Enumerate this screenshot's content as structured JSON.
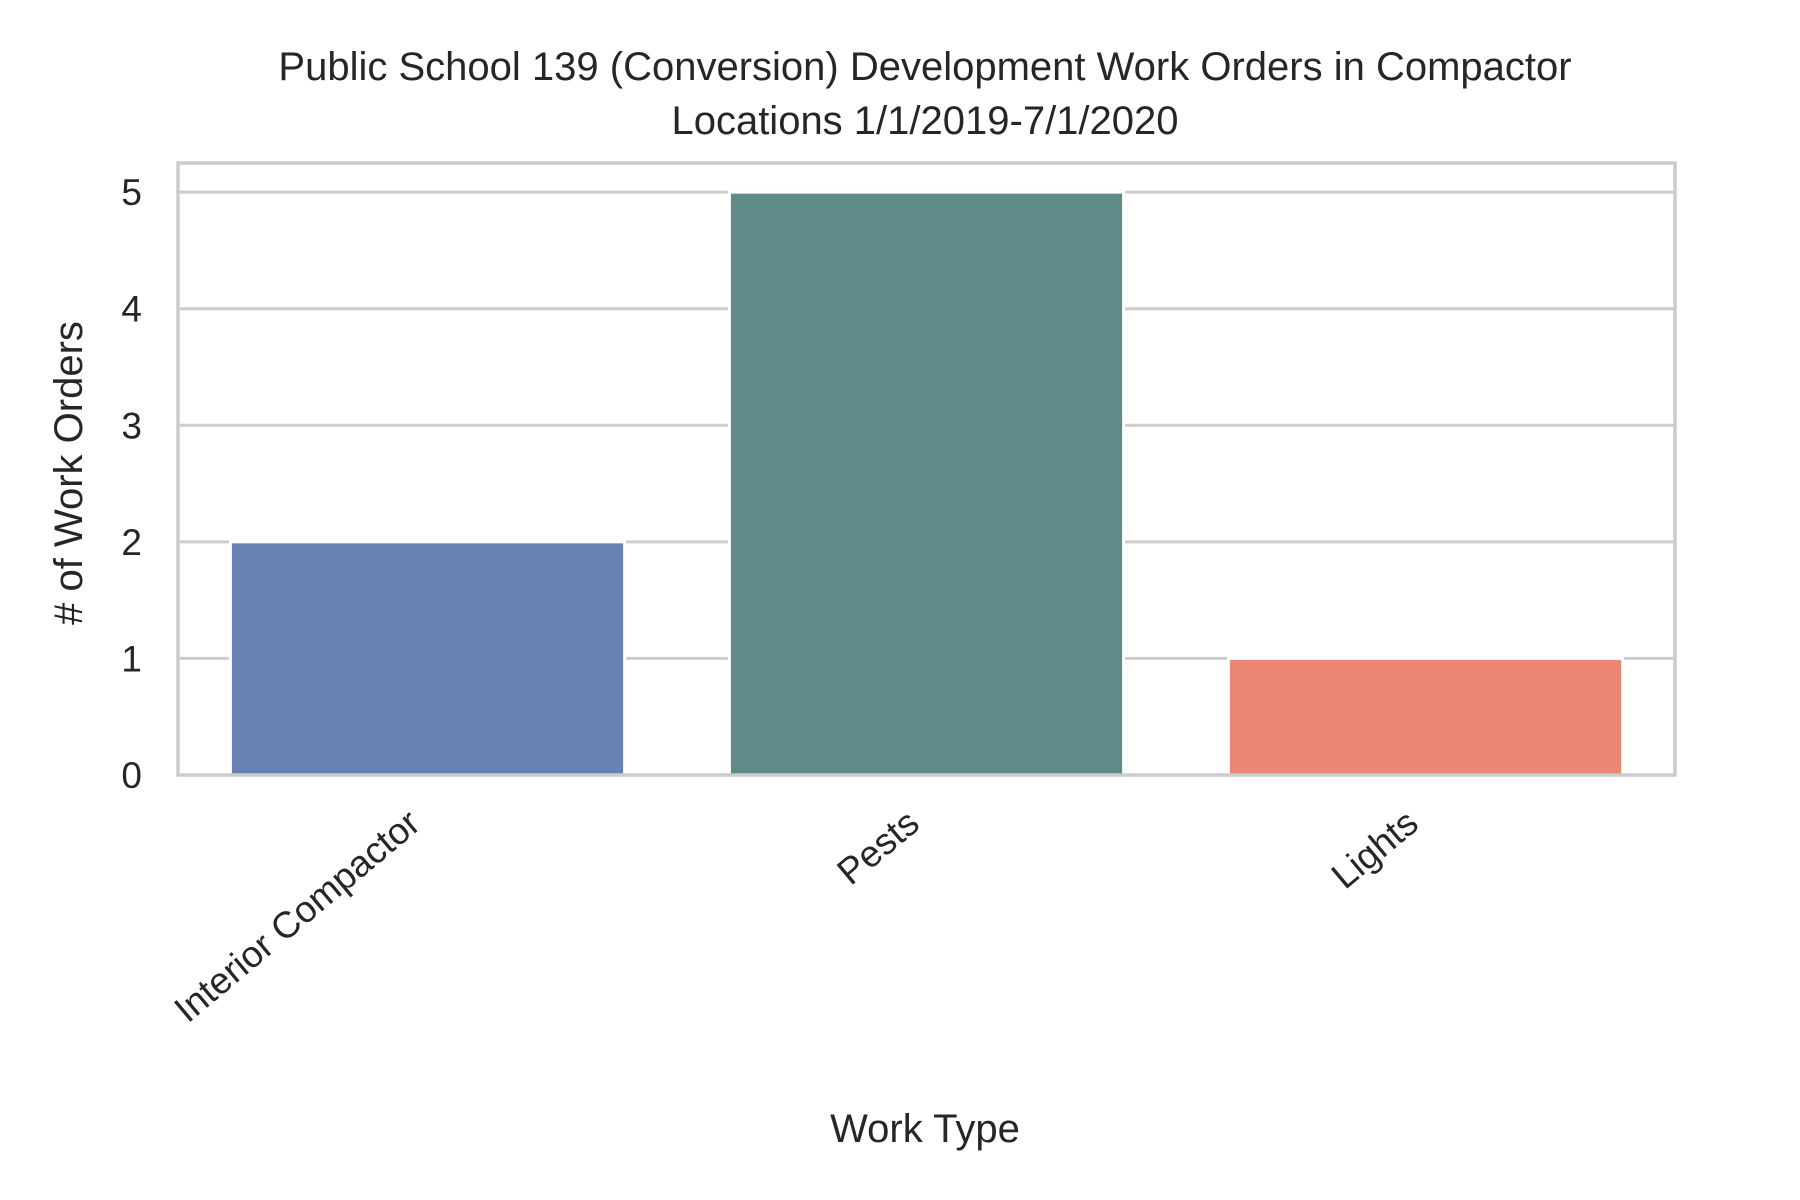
{
  "chart_data": {
    "type": "bar",
    "title_lines": [
      "Public School 139 (Conversion) Development Work Orders in Compactor",
      "Locations 1/1/2019-7/1/2020"
    ],
    "xlabel": "Work Type",
    "ylabel": "# of Work Orders",
    "categories": [
      "Interior Compactor",
      "Pests",
      "Lights"
    ],
    "values": [
      2,
      5,
      1
    ],
    "colors": [
      "#6781b2",
      "#5e8a88",
      "#ea8671"
    ],
    "yticks": [
      "0",
      "1",
      "2",
      "3",
      "4",
      "5"
    ],
    "ylim": [
      0,
      5.25
    ],
    "grid": true,
    "grid_color": "#cccccc",
    "frame_color": "#cccccc",
    "text_color": "#262626"
  }
}
